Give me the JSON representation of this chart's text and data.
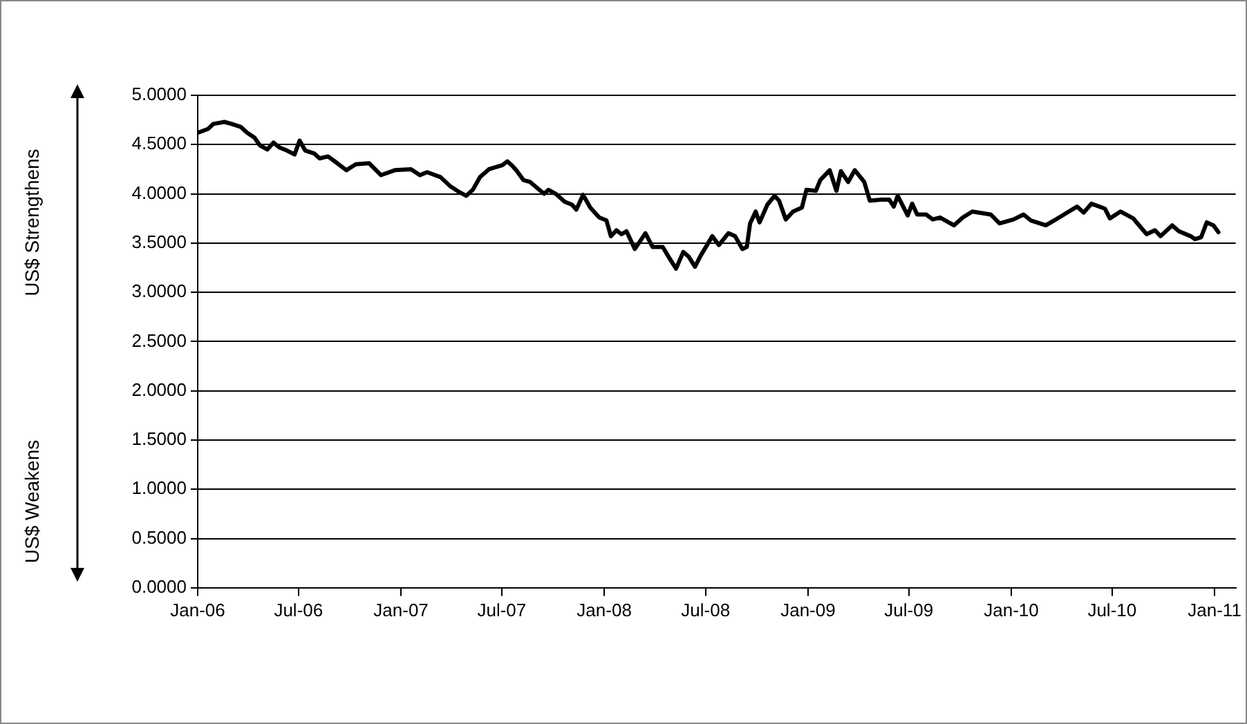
{
  "chart_data": {
    "type": "line",
    "annotations": [
      "US$ Strengthens",
      "US$ Weakens"
    ],
    "series": [
      {
        "color": "#000000",
        "x": [
          "2006-01-01",
          "2006-01-20",
          "2006-01-29",
          "2006-02-18",
          "2006-03-03",
          "2006-03-19",
          "2006-03-31",
          "2006-04-13",
          "2006-04-23",
          "2006-05-06",
          "2006-05-17",
          "2006-05-28",
          "2006-06-10",
          "2006-06-24",
          "2006-07-03",
          "2006-07-13",
          "2006-07-29",
          "2006-08-08",
          "2006-08-23",
          "2006-09-04",
          "2006-09-25",
          "2006-10-12",
          "2006-11-05",
          "2006-11-26",
          "2006-12-21",
          "2007-01-19",
          "2007-02-04",
          "2007-02-17",
          "2007-03-13",
          "2007-03-30",
          "2007-04-15",
          "2007-04-28",
          "2007-05-10",
          "2007-05-23",
          "2007-06-08",
          "2007-07-02",
          "2007-07-11",
          "2007-07-19",
          "2007-07-27",
          "2007-08-09",
          "2007-08-21",
          "2007-09-15",
          "2007-09-23",
          "2007-10-06",
          "2007-10-22",
          "2007-11-04",
          "2007-11-12",
          "2007-11-24",
          "2007-12-07",
          "2007-12-23",
          "2008-01-05",
          "2008-01-13",
          "2008-01-23",
          "2008-02-01",
          "2008-02-10",
          "2008-02-25",
          "2008-03-15",
          "2008-03-28",
          "2008-04-15",
          "2008-04-29",
          "2008-05-09",
          "2008-05-22",
          "2008-06-01",
          "2008-06-12",
          "2008-06-22",
          "2008-07-13",
          "2008-07-25",
          "2008-08-11",
          "2008-08-23",
          "2008-09-05",
          "2008-09-13",
          "2008-09-19",
          "2008-09-29",
          "2008-10-06",
          "2008-10-20",
          "2008-11-02",
          "2008-11-10",
          "2008-11-22",
          "2008-12-05",
          "2008-12-21",
          "2008-12-29",
          "2009-01-15",
          "2009-01-23",
          "2009-02-09",
          "2009-02-21",
          "2009-03-01",
          "2009-03-14",
          "2009-03-26",
          "2009-04-12",
          "2009-04-22",
          "2009-05-11",
          "2009-05-27",
          "2009-06-04",
          "2009-06-11",
          "2009-06-29",
          "2009-07-07",
          "2009-07-16",
          "2009-08-01",
          "2009-08-13",
          "2009-08-26",
          "2009-09-20",
          "2009-10-06",
          "2009-10-23",
          "2009-11-25",
          "2009-12-11",
          "2010-01-05",
          "2010-01-23",
          "2010-02-05",
          "2010-03-04",
          "2010-03-28",
          "2010-04-29",
          "2010-05-11",
          "2010-05-25",
          "2010-06-18",
          "2010-06-27",
          "2010-07-16",
          "2010-08-08",
          "2010-09-01",
          "2010-09-16",
          "2010-09-26",
          "2010-10-17",
          "2010-10-29",
          "2010-11-19",
          "2010-11-27",
          "2010-12-08",
          "2010-12-18",
          "2010-12-30",
          "2011-01-08"
        ],
        "values": [
          4.62,
          4.66,
          4.71,
          4.73,
          4.71,
          4.68,
          4.62,
          4.57,
          4.49,
          4.45,
          4.52,
          4.47,
          4.44,
          4.4,
          4.54,
          4.44,
          4.41,
          4.36,
          4.38,
          4.33,
          4.24,
          4.3,
          4.31,
          4.19,
          4.24,
          4.25,
          4.19,
          4.22,
          4.17,
          4.08,
          4.02,
          3.98,
          4.04,
          4.17,
          4.25,
          4.29,
          4.33,
          4.29,
          4.24,
          4.14,
          4.12,
          4.0,
          4.04,
          4.0,
          3.92,
          3.89,
          3.84,
          3.99,
          3.86,
          3.76,
          3.73,
          3.57,
          3.63,
          3.59,
          3.62,
          3.44,
          3.6,
          3.46,
          3.46,
          3.33,
          3.24,
          3.41,
          3.36,
          3.26,
          3.37,
          3.57,
          3.48,
          3.6,
          3.57,
          3.44,
          3.46,
          3.7,
          3.82,
          3.71,
          3.89,
          3.98,
          3.93,
          3.74,
          3.82,
          3.86,
          4.04,
          4.03,
          4.14,
          4.24,
          4.03,
          4.23,
          4.12,
          4.24,
          4.12,
          3.93,
          3.94,
          3.94,
          3.87,
          3.98,
          3.78,
          3.9,
          3.79,
          3.79,
          3.74,
          3.76,
          3.68,
          3.76,
          3.82,
          3.79,
          3.7,
          3.74,
          3.79,
          3.73,
          3.68,
          3.76,
          3.87,
          3.81,
          3.9,
          3.85,
          3.75,
          3.82,
          3.75,
          3.59,
          3.63,
          3.57,
          3.68,
          3.62,
          3.57,
          3.54,
          3.56,
          3.71,
          3.68,
          3.61
        ]
      }
    ],
    "xlim": [
      "2006-01-01",
      "2011-02-08"
    ],
    "xticks": [
      {
        "value": "2006-01",
        "label": "Jan-06"
      },
      {
        "value": "2006-07",
        "label": "Jul-06"
      },
      {
        "value": "2007-01",
        "label": "Jan-07"
      },
      {
        "value": "2007-07",
        "label": "Jul-07"
      },
      {
        "value": "2008-01",
        "label": "Jan-08"
      },
      {
        "value": "2008-07",
        "label": "Jul-08"
      },
      {
        "value": "2009-01",
        "label": "Jan-09"
      },
      {
        "value": "2009-07",
        "label": "Jul-09"
      },
      {
        "value": "2010-01",
        "label": "Jan-10"
      },
      {
        "value": "2010-07",
        "label": "Jul-10"
      },
      {
        "value": "2011-01",
        "label": "Jan-11"
      }
    ],
    "ylim": [
      0,
      5
    ],
    "yticks": [
      {
        "value": 0,
        "label": "0.0000"
      },
      {
        "value": 0.5,
        "label": "0.5000"
      },
      {
        "value": 1,
        "label": "1.0000"
      },
      {
        "value": 1.5,
        "label": "1.5000"
      },
      {
        "value": 2,
        "label": "2.0000"
      },
      {
        "value": 2.5,
        "label": "2.5000"
      },
      {
        "value": 3,
        "label": "3.0000"
      },
      {
        "value": 3.5,
        "label": "3.5000"
      },
      {
        "value": 4,
        "label": "4.0000"
      },
      {
        "value": 4.5,
        "label": "4.5000"
      },
      {
        "value": 5,
        "label": "5.0000"
      }
    ],
    "grid": "y",
    "legend": false,
    "marker": "none",
    "line_style": "solid"
  }
}
